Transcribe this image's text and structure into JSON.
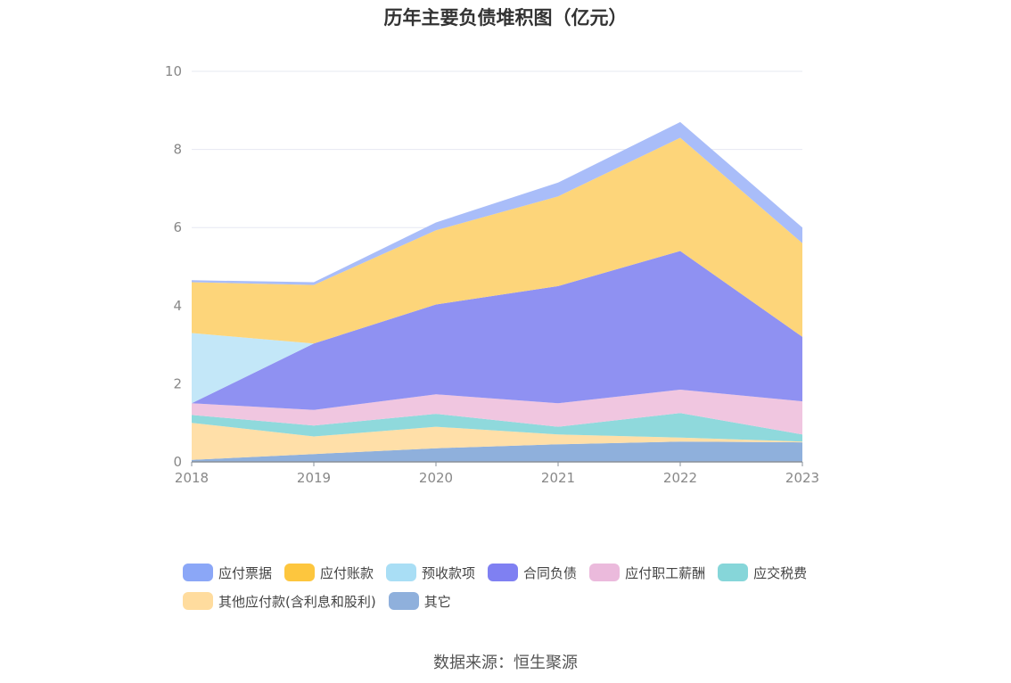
{
  "chart_data": {
    "type": "area",
    "stacked": true,
    "title": "历年主要负债堆积图（亿元）",
    "xlabel": "",
    "ylabel": "",
    "categories": [
      "2018",
      "2019",
      "2020",
      "2021",
      "2022",
      "2023"
    ],
    "ylim": [
      0,
      10
    ],
    "yticks": [
      "0",
      "2",
      "4",
      "6",
      "8",
      "10"
    ],
    "grid": true,
    "legend_position": "bottom",
    "series": [
      {
        "name": "其它",
        "color": "#8fb0dc",
        "values": [
          0.05,
          0.2,
          0.35,
          0.45,
          0.52,
          0.5
        ]
      },
      {
        "name": "其他应付款(含利息和股利)",
        "color": "#ffdfa8",
        "values": [
          0.95,
          0.45,
          0.55,
          0.25,
          0.1,
          0.02
        ]
      },
      {
        "name": "应交税费",
        "color": "#8fd9dc",
        "values": [
          0.2,
          0.28,
          0.33,
          0.2,
          0.63,
          0.18
        ]
      },
      {
        "name": "应付职工薪酬",
        "color": "#f0c6e0",
        "values": [
          0.3,
          0.4,
          0.5,
          0.6,
          0.6,
          0.85
        ]
      },
      {
        "name": "合同负债",
        "color": "#8f91f2",
        "values": [
          0.0,
          1.7,
          2.3,
          3.0,
          3.55,
          1.65
        ]
      },
      {
        "name": "预收款项",
        "color": "#c3e7f8",
        "values": [
          1.8,
          0.0,
          0.0,
          0.0,
          0.0,
          0.0
        ]
      },
      {
        "name": "应付账款",
        "color": "#fdd57a",
        "values": [
          1.3,
          1.5,
          1.9,
          2.3,
          2.9,
          2.4
        ]
      },
      {
        "name": "应付票据",
        "color": "#a9bdf9",
        "values": [
          0.05,
          0.07,
          0.2,
          0.35,
          0.4,
          0.4
        ]
      }
    ]
  },
  "legend": [
    {
      "label": "应付票据",
      "color": "#8ba7f7"
    },
    {
      "label": "应付账款",
      "color": "#fdc63e"
    },
    {
      "label": "预收款项",
      "color": "#a9def5"
    },
    {
      "label": "合同负债",
      "color": "#7f80f2"
    },
    {
      "label": "应付职工薪酬",
      "color": "#ebbadc"
    },
    {
      "label": "应交税费",
      "color": "#86d6d9"
    },
    {
      "label": "其他应付款(含利息和股利)",
      "color": "#ffdc9e"
    },
    {
      "label": "其它",
      "color": "#8fb0dc"
    }
  ],
  "source": "数据来源：恒生聚源"
}
